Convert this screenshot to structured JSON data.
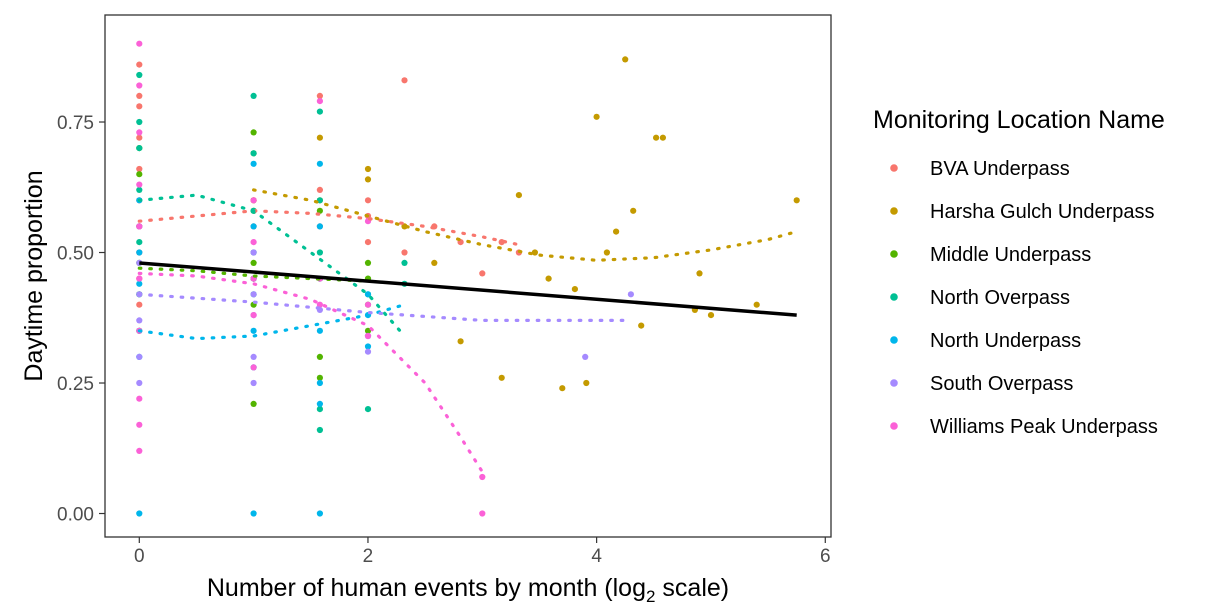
{
  "chart_data": {
    "type": "scatter",
    "title": "",
    "xlabel_main": "Number of human events by month (log",
    "xlabel_sub": "2",
    "xlabel_tail": " scale)",
    "ylabel": "Daytime proportion",
    "xlim": [
      -0.3,
      6.05
    ],
    "ylim": [
      -0.045,
      0.955
    ],
    "x_ticks": [
      0,
      2,
      4,
      6
    ],
    "y_ticks": [
      0.0,
      0.25,
      0.5,
      0.75
    ],
    "x_tick_labels": [
      "0",
      "2",
      "4",
      "6"
    ],
    "y_tick_labels": [
      "0.00",
      "0.25",
      "0.50",
      "0.75"
    ],
    "grid": false,
    "legend_title": "Monitoring Location Name",
    "legend_position": "right",
    "trend_line": {
      "x": [
        0,
        5.75
      ],
      "y": [
        0.48,
        0.38
      ],
      "color": "#000000"
    },
    "series": [
      {
        "name": "BVA Underpass",
        "color": "#F8766D",
        "points": [
          [
            0,
            0.86
          ],
          [
            0,
            0.8
          ],
          [
            0,
            0.78
          ],
          [
            0,
            0.72
          ],
          [
            0,
            0.66
          ],
          [
            0,
            0.6
          ],
          [
            0,
            0.55
          ],
          [
            0,
            0.5
          ],
          [
            0,
            0.45
          ],
          [
            0,
            0.4
          ],
          [
            1,
            0.6
          ],
          [
            1,
            0.55
          ],
          [
            1,
            0.45
          ],
          [
            1.58,
            0.8
          ],
          [
            1.58,
            0.62
          ],
          [
            1.58,
            0.55
          ],
          [
            2,
            0.6
          ],
          [
            2,
            0.57
          ],
          [
            2,
            0.52
          ],
          [
            2.32,
            0.83
          ],
          [
            2.32,
            0.5
          ],
          [
            2.58,
            0.55
          ],
          [
            2.81,
            0.52
          ],
          [
            3,
            0.46
          ],
          [
            3.17,
            0.52
          ],
          [
            3.32,
            0.5
          ]
        ],
        "fit": [
          [
            0,
            0.56
          ],
          [
            0.5,
            0.57
          ],
          [
            1,
            0.58
          ],
          [
            1.5,
            0.575
          ],
          [
            2,
            0.565
          ],
          [
            2.5,
            0.55
          ],
          [
            3,
            0.53
          ],
          [
            3.32,
            0.515
          ]
        ]
      },
      {
        "name": "Harsha Gulch Underpass",
        "color": "#C49A00",
        "points": [
          [
            1,
            0.6
          ],
          [
            1.58,
            0.72
          ],
          [
            1.58,
            0.6
          ],
          [
            2,
            0.66
          ],
          [
            2,
            0.64
          ],
          [
            2.32,
            0.55
          ],
          [
            2.58,
            0.48
          ],
          [
            2.81,
            0.33
          ],
          [
            3.17,
            0.26
          ],
          [
            3.32,
            0.61
          ],
          [
            3.46,
            0.5
          ],
          [
            3.58,
            0.45
          ],
          [
            3.7,
            0.24
          ],
          [
            3.81,
            0.43
          ],
          [
            3.91,
            0.25
          ],
          [
            4,
            0.76
          ],
          [
            4.09,
            0.5
          ],
          [
            4.17,
            0.54
          ],
          [
            4.25,
            0.87
          ],
          [
            4.32,
            0.58
          ],
          [
            4.39,
            0.36
          ],
          [
            4.52,
            0.72
          ],
          [
            4.58,
            0.72
          ],
          [
            4.86,
            0.39
          ],
          [
            4.9,
            0.46
          ],
          [
            5,
            0.38
          ],
          [
            5.4,
            0.4
          ],
          [
            5.75,
            0.6
          ]
        ],
        "fit": [
          [
            1,
            0.62
          ],
          [
            1.5,
            0.6
          ],
          [
            2,
            0.57
          ],
          [
            2.5,
            0.54
          ],
          [
            3,
            0.515
          ],
          [
            3.5,
            0.495
          ],
          [
            4,
            0.485
          ],
          [
            4.5,
            0.49
          ],
          [
            5,
            0.505
          ],
          [
            5.5,
            0.525
          ],
          [
            5.75,
            0.54
          ]
        ]
      },
      {
        "name": "Middle Underpass",
        "color": "#53B400",
        "points": [
          [
            0,
            0.7
          ],
          [
            0,
            0.65
          ],
          [
            0,
            0.55
          ],
          [
            0,
            0.48
          ],
          [
            0,
            0.42
          ],
          [
            0,
            0.35
          ],
          [
            1,
            0.73
          ],
          [
            1,
            0.69
          ],
          [
            1,
            0.58
          ],
          [
            1,
            0.48
          ],
          [
            1,
            0.45
          ],
          [
            1,
            0.4
          ],
          [
            1,
            0.21
          ],
          [
            1.58,
            0.58
          ],
          [
            1.58,
            0.45
          ],
          [
            1.58,
            0.3
          ],
          [
            1.58,
            0.26
          ],
          [
            2,
            0.48
          ],
          [
            2,
            0.45
          ],
          [
            2,
            0.4
          ],
          [
            2,
            0.35
          ]
        ],
        "fit": [
          [
            0,
            0.47
          ],
          [
            0.5,
            0.465
          ],
          [
            1,
            0.455
          ],
          [
            1.5,
            0.45
          ],
          [
            2,
            0.445
          ]
        ]
      },
      {
        "name": "North Overpass",
        "color": "#00C094",
        "points": [
          [
            0,
            0.84
          ],
          [
            0,
            0.75
          ],
          [
            0,
            0.7
          ],
          [
            0,
            0.62
          ],
          [
            0,
            0.52
          ],
          [
            0,
            0.42
          ],
          [
            1,
            0.8
          ],
          [
            1,
            0.69
          ],
          [
            1,
            0.58
          ],
          [
            1,
            0.5
          ],
          [
            1,
            0.42
          ],
          [
            1.58,
            0.77
          ],
          [
            1.58,
            0.6
          ],
          [
            1.58,
            0.5
          ],
          [
            1.58,
            0.2
          ],
          [
            1.58,
            0.16
          ],
          [
            2,
            0.42
          ],
          [
            2,
            0.2
          ],
          [
            2.32,
            0.48
          ],
          [
            2.32,
            0.44
          ]
        ],
        "fit": [
          [
            0,
            0.6
          ],
          [
            0.5,
            0.61
          ],
          [
            1,
            0.58
          ],
          [
            1.5,
            0.5
          ],
          [
            2,
            0.42
          ],
          [
            2.32,
            0.34
          ]
        ]
      },
      {
        "name": "North Underpass",
        "color": "#00B6EB",
        "points": [
          [
            0,
            0.6
          ],
          [
            0,
            0.5
          ],
          [
            0,
            0.44
          ],
          [
            0,
            0.35
          ],
          [
            0,
            0.3
          ],
          [
            0,
            0.0
          ],
          [
            1,
            0.67
          ],
          [
            1,
            0.55
          ],
          [
            1,
            0.45
          ],
          [
            1,
            0.35
          ],
          [
            1,
            0.28
          ],
          [
            1,
            0.0
          ],
          [
            1.58,
            0.67
          ],
          [
            1.58,
            0.55
          ],
          [
            1.58,
            0.45
          ],
          [
            1.58,
            0.35
          ],
          [
            1.58,
            0.25
          ],
          [
            1.58,
            0.21
          ],
          [
            1.58,
            0.0
          ],
          [
            2,
            0.42
          ],
          [
            2,
            0.38
          ],
          [
            2,
            0.34
          ],
          [
            2,
            0.32
          ]
        ],
        "fit": [
          [
            0,
            0.35
          ],
          [
            0.5,
            0.335
          ],
          [
            1,
            0.34
          ],
          [
            1.5,
            0.36
          ],
          [
            2,
            0.38
          ],
          [
            2.32,
            0.4
          ]
        ]
      },
      {
        "name": "South Overpass",
        "color": "#A58AFF",
        "points": [
          [
            0,
            0.55
          ],
          [
            0,
            0.48
          ],
          [
            0,
            0.42
          ],
          [
            0,
            0.37
          ],
          [
            0,
            0.3
          ],
          [
            0,
            0.25
          ],
          [
            1,
            0.5
          ],
          [
            1,
            0.42
          ],
          [
            1,
            0.38
          ],
          [
            1,
            0.3
          ],
          [
            1,
            0.25
          ],
          [
            1.58,
            0.45
          ],
          [
            1.58,
            0.39
          ],
          [
            2,
            0.34
          ],
          [
            2,
            0.31
          ],
          [
            3.9,
            0.3
          ],
          [
            4.3,
            0.42
          ]
        ],
        "fit": [
          [
            0,
            0.42
          ],
          [
            1,
            0.405
          ],
          [
            2,
            0.385
          ],
          [
            3,
            0.37
          ],
          [
            4,
            0.37
          ],
          [
            4.3,
            0.37
          ]
        ]
      },
      {
        "name": "Williams Peak Underpass",
        "color": "#FB61D7",
        "points": [
          [
            0,
            0.9
          ],
          [
            0,
            0.82
          ],
          [
            0,
            0.73
          ],
          [
            0,
            0.63
          ],
          [
            0,
            0.55
          ],
          [
            0,
            0.45
          ],
          [
            0,
            0.35
          ],
          [
            0,
            0.22
          ],
          [
            0,
            0.17
          ],
          [
            0,
            0.12
          ],
          [
            1,
            0.6
          ],
          [
            1,
            0.52
          ],
          [
            1,
            0.45
          ],
          [
            1,
            0.38
          ],
          [
            1,
            0.28
          ],
          [
            1.58,
            0.79
          ],
          [
            1.58,
            0.45
          ],
          [
            1.58,
            0.4
          ],
          [
            2,
            0.56
          ],
          [
            2,
            0.4
          ],
          [
            2,
            0.34
          ],
          [
            3,
            0.07
          ],
          [
            3,
            0.0
          ]
        ],
        "fit": [
          [
            0,
            0.46
          ],
          [
            0.5,
            0.455
          ],
          [
            1,
            0.44
          ],
          [
            1.5,
            0.41
          ],
          [
            2,
            0.36
          ],
          [
            2.5,
            0.25
          ],
          [
            2.8,
            0.15
          ],
          [
            3,
            0.08
          ]
        ]
      }
    ]
  }
}
